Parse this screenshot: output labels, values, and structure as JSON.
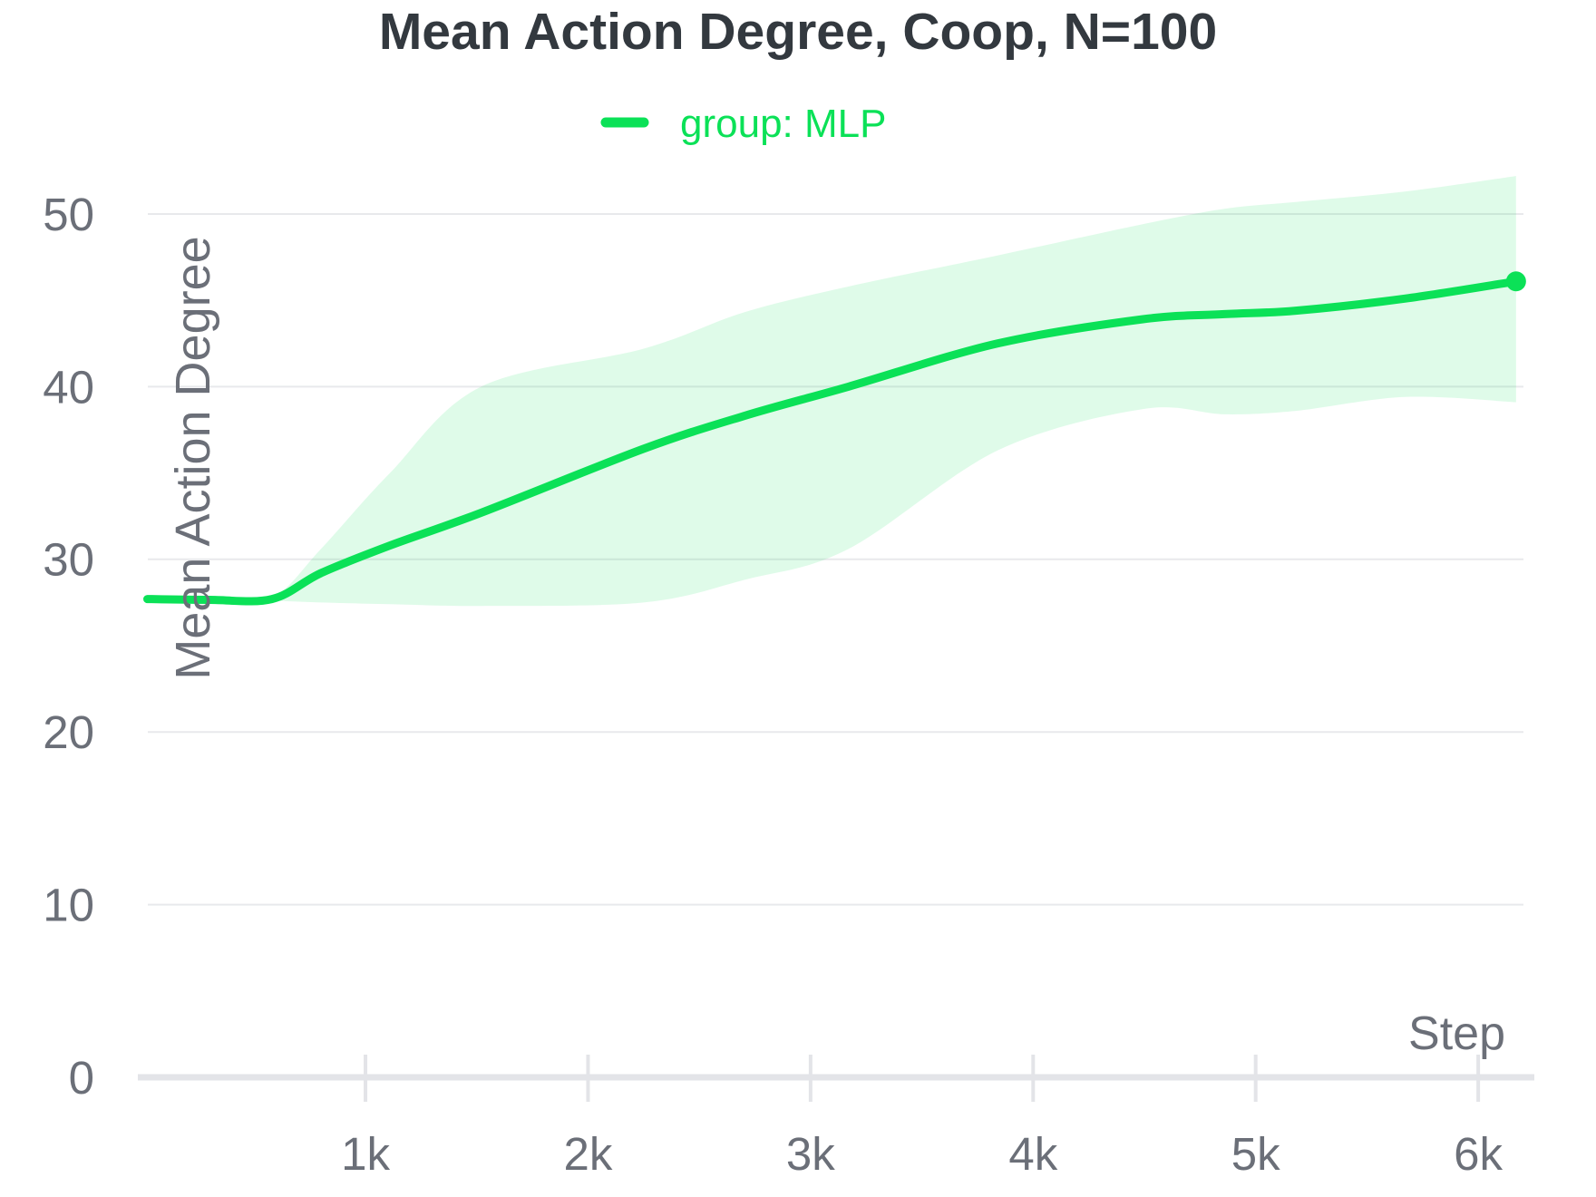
{
  "title": "Mean Action Degree, Coop, N=100",
  "legend": {
    "label": "group: MLP"
  },
  "colors": {
    "line": "#0be157",
    "band": "#0be157",
    "band_opacity": 0.13,
    "grid": "#e8e9ec",
    "axis": "#e3e4e8",
    "tick_text": "#6b6f78",
    "title_text": "#33393f"
  },
  "chart_data": {
    "type": "line",
    "title": "Mean Action Degree, Coop, N=100",
    "xlabel": "Step",
    "ylabel": "Mean Action Degree",
    "legend_position": "top-center",
    "grid": "horizontal",
    "xlim": [
      0,
      6530
    ],
    "ylim": [
      0,
      52.5
    ],
    "xticks": [
      {
        "value": 1000,
        "label": "1k"
      },
      {
        "value": 2000,
        "label": "2k"
      },
      {
        "value": 3000,
        "label": "3k"
      },
      {
        "value": 4000,
        "label": "4k"
      },
      {
        "value": 5000,
        "label": "5k"
      },
      {
        "value": 6000,
        "label": "6k"
      }
    ],
    "yticks": [
      {
        "value": 0,
        "label": "0"
      },
      {
        "value": 10,
        "label": "10"
      },
      {
        "value": 20,
        "label": "20"
      },
      {
        "value": 30,
        "label": "30"
      },
      {
        "value": 40,
        "label": "40"
      },
      {
        "value": 50,
        "label": "50"
      }
    ],
    "series": [
      {
        "name": "group: MLP",
        "end_marker": true,
        "x": [
          20,
          300,
          580,
          800,
          1110,
          1520,
          2250,
          2700,
          3170,
          3840,
          4490,
          4860,
          5180,
          5670,
          6170
        ],
        "y": [
          27.7,
          27.65,
          27.7,
          29.2,
          30.8,
          32.7,
          36.4,
          38.3,
          40.0,
          42.5,
          43.9,
          44.2,
          44.4,
          45.1,
          46.1
        ],
        "band_upper": [
          27.7,
          27.65,
          27.8,
          30.6,
          35.0,
          40.0,
          42.2,
          44.3,
          45.8,
          47.6,
          49.4,
          50.3,
          50.7,
          51.3,
          52.2
        ],
        "band_lower": [
          27.7,
          27.65,
          27.6,
          27.5,
          27.4,
          27.3,
          27.5,
          28.8,
          30.6,
          36.3,
          38.7,
          38.4,
          38.6,
          39.4,
          39.1
        ]
      }
    ]
  }
}
